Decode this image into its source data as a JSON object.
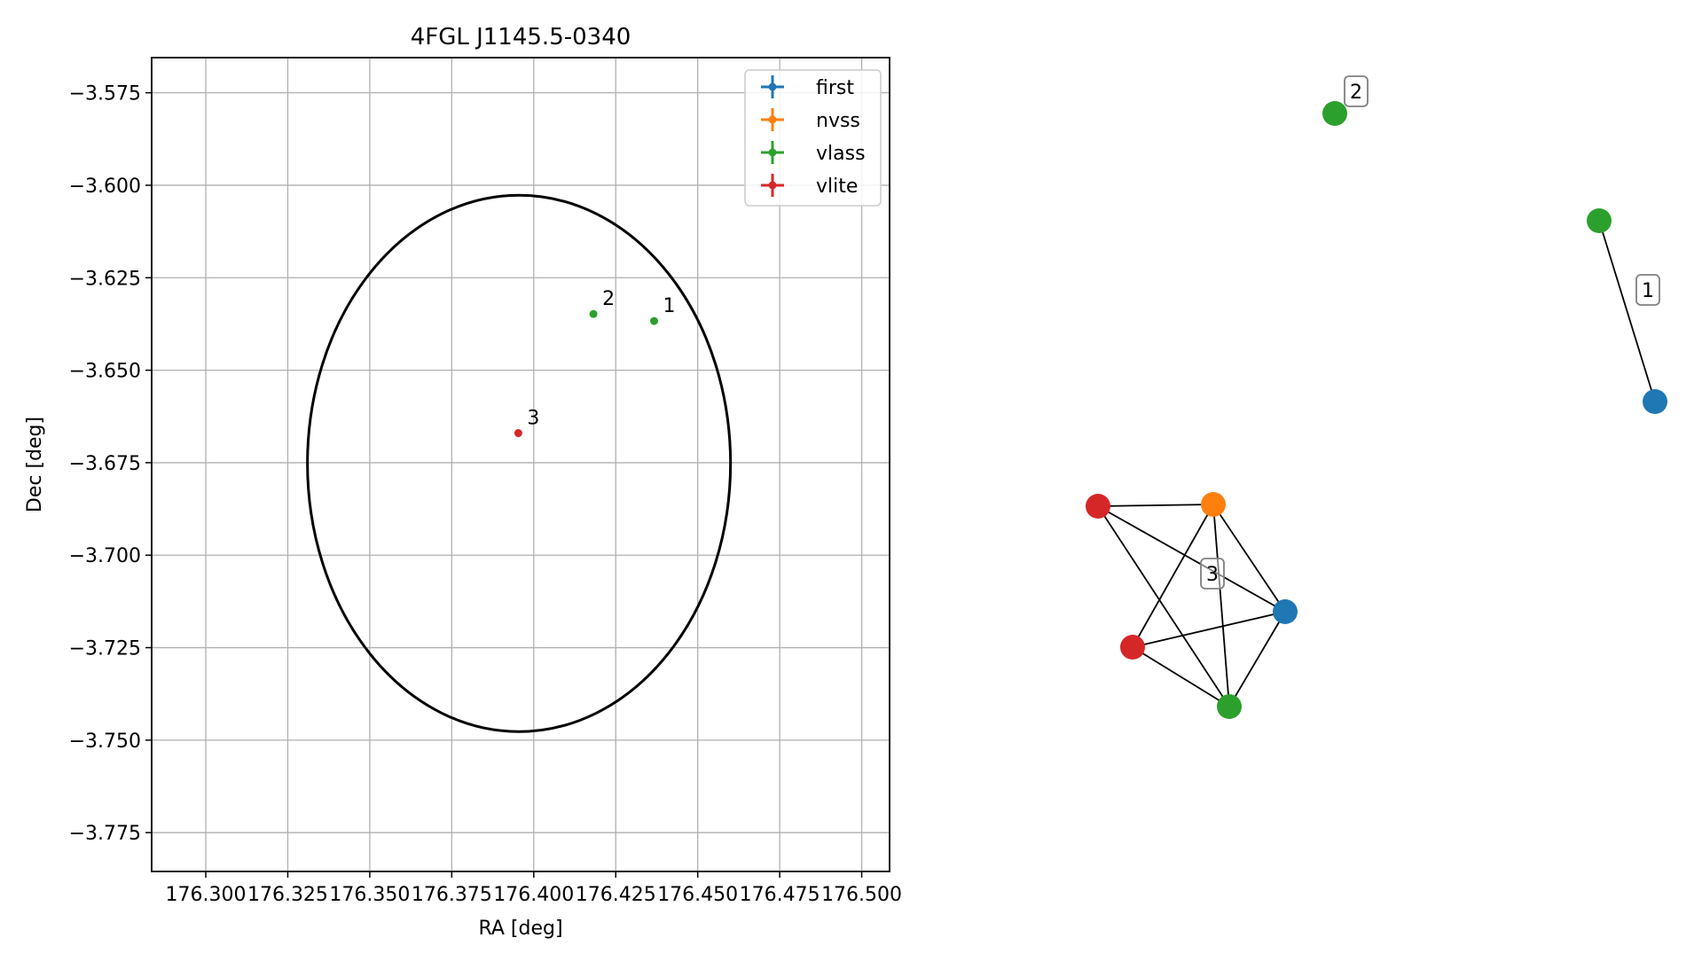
{
  "chart_data": [
    {
      "type": "scatter",
      "title": "4FGL J1145.5-0340",
      "xlabel": "RA [deg]",
      "ylabel": "Dec [deg]",
      "xlim": [
        176.2835,
        176.5085
      ],
      "ylim": [
        -3.7855,
        -3.5655
      ],
      "xticks": [
        176.3,
        176.325,
        176.35,
        176.375,
        176.4,
        176.425,
        176.45,
        176.475,
        176.5
      ],
      "xtick_labels": [
        "176.300",
        "176.325",
        "176.350",
        "176.375",
        "176.400",
        "176.425",
        "176.450",
        "176.475",
        "176.500"
      ],
      "yticks": [
        -3.575,
        -3.6,
        -3.625,
        -3.65,
        -3.675,
        -3.7,
        -3.725,
        -3.75,
        -3.775
      ],
      "ytick_labels": [
        "−3.575",
        "−3.600",
        "−3.625",
        "−3.650",
        "−3.675",
        "−3.700",
        "−3.725",
        "−3.750",
        "−3.775"
      ],
      "grid": true,
      "legend_position": "top-right",
      "colors": {
        "first": "#1f77b4",
        "nvss": "#ff7f0e",
        "vlass": "#2ca02c",
        "vlite": "#d62728"
      },
      "series": [
        {
          "name": "first",
          "points": []
        },
        {
          "name": "nvss",
          "points": []
        },
        {
          "name": "vlass",
          "points": [
            {
              "x": 176.4367,
              "y": -3.6367
            },
            {
              "x": 176.4182,
              "y": -3.6348
            }
          ]
        },
        {
          "name": "vlite",
          "points": [
            {
              "x": 176.3953,
              "y": -3.667
            }
          ]
        }
      ],
      "point_labels": [
        {
          "text": "1",
          "x": 176.4367,
          "y": -3.6367
        },
        {
          "text": "2",
          "x": 176.4182,
          "y": -3.6348
        },
        {
          "text": "3",
          "x": 176.3953,
          "y": -3.667
        }
      ],
      "ellipse": {
        "center": [
          176.3955,
          -3.6752
        ],
        "ra_semi_axis": 0.0645,
        "dec_semi_axis": 0.0725,
        "color": "#000000"
      }
    },
    {
      "type": "graph",
      "groups": [
        {
          "label": "1",
          "nodes": [
            {
              "id": "1a",
              "survey": "vlass"
            },
            {
              "id": "1b",
              "survey": "first"
            }
          ],
          "edges": [
            [
              "1a",
              "1b"
            ]
          ]
        },
        {
          "label": "2",
          "nodes": [
            {
              "id": "2a",
              "survey": "vlass"
            }
          ],
          "edges": []
        },
        {
          "label": "3",
          "nodes": [
            {
              "id": "3a",
              "survey": "vlite"
            },
            {
              "id": "3b",
              "survey": "nvss"
            },
            {
              "id": "3c",
              "survey": "first"
            },
            {
              "id": "3d",
              "survey": "vlite"
            },
            {
              "id": "3e",
              "survey": "vlass"
            }
          ],
          "edges": [
            [
              "3a",
              "3b"
            ],
            [
              "3a",
              "3c"
            ],
            [
              "3a",
              "3e"
            ],
            [
              "3b",
              "3c"
            ],
            [
              "3b",
              "3d"
            ],
            [
              "3b",
              "3e"
            ],
            [
              "3c",
              "3d"
            ],
            [
              "3c",
              "3e"
            ],
            [
              "3d",
              "3e"
            ]
          ]
        }
      ]
    }
  ]
}
